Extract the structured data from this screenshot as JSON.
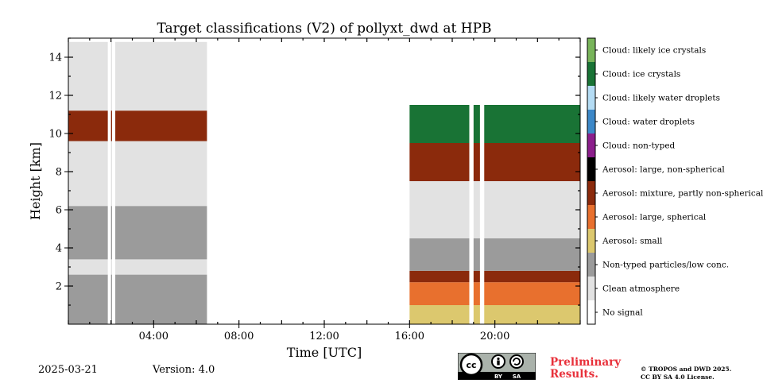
{
  "chart_data": {
    "type": "heatmap",
    "title": "Target classifications (V2) of pollyxt_dwd at HPB",
    "xlabel": "Time [UTC]",
    "ylabel": "Height [km]",
    "xlim": [
      0,
      24
    ],
    "ylim": [
      0,
      15
    ],
    "x_ticks": [
      {
        "value": 4,
        "label": "04:00"
      },
      {
        "value": 8,
        "label": "08:00"
      },
      {
        "value": 12,
        "label": "12:00"
      },
      {
        "value": 16,
        "label": "16:00"
      },
      {
        "value": 20,
        "label": "20:00"
      }
    ],
    "y_ticks": [
      {
        "value": 2,
        "label": "2"
      },
      {
        "value": 4,
        "label": "4"
      },
      {
        "value": 6,
        "label": "6"
      },
      {
        "value": 8,
        "label": "8"
      },
      {
        "value": 10,
        "label": "10"
      },
      {
        "value": 12,
        "label": "12"
      },
      {
        "value": 14,
        "label": "14"
      }
    ],
    "classes": [
      {
        "label": "No signal",
        "color": "#ffffff"
      },
      {
        "label": "Clean atmosphere",
        "color": "#e2e2e2"
      },
      {
        "label": "Non-typed particles/low conc.",
        "color": "#9b9b9b"
      },
      {
        "label": "Aerosol: small",
        "color": "#dcc86e"
      },
      {
        "label": "Aerosol: large, spherical",
        "color": "#e8702e"
      },
      {
        "label": "Aerosol: mixture, partly non-spherical",
        "color": "#8b2a0c"
      },
      {
        "label": "Aerosol: large, non-spherical",
        "color": "#000000"
      },
      {
        "label": "Cloud: non-typed",
        "color": "#8b1e8b"
      },
      {
        "label": "Cloud: water droplets",
        "color": "#3c88c8"
      },
      {
        "label": "Cloud: likely water droplets",
        "color": "#b4dcf4"
      },
      {
        "label": "Cloud: ice crystals",
        "color": "#197335"
      },
      {
        "label": "Cloud: likely ice crystals",
        "color": "#78b45a"
      }
    ],
    "segments": [
      {
        "t0": 0.0,
        "t1": 6.5,
        "layers": [
          {
            "h0": 0.0,
            "h1": 2.6,
            "class": "Non-typed particles/low conc."
          },
          {
            "h0": 2.6,
            "h1": 3.4,
            "class": "Clean atmosphere"
          },
          {
            "h0": 3.4,
            "h1": 6.2,
            "class": "Non-typed particles/low conc."
          },
          {
            "h0": 6.2,
            "h1": 9.6,
            "class": "Clean atmosphere"
          },
          {
            "h0": 9.6,
            "h1": 11.2,
            "class": "Aerosol: mixture, partly non-spherical"
          },
          {
            "h0": 11.2,
            "h1": 14.8,
            "class": "Clean atmosphere"
          }
        ]
      },
      {
        "t0": 16.0,
        "t1": 24.0,
        "layers": [
          {
            "h0": 0.0,
            "h1": 1.0,
            "class": "Aerosol: small"
          },
          {
            "h0": 1.0,
            "h1": 2.2,
            "class": "Aerosol: large, spherical"
          },
          {
            "h0": 2.2,
            "h1": 2.8,
            "class": "Aerosol: mixture, partly non-spherical"
          },
          {
            "h0": 2.8,
            "h1": 4.5,
            "class": "Non-typed particles/low conc."
          },
          {
            "h0": 4.5,
            "h1": 7.5,
            "class": "Clean atmosphere"
          },
          {
            "h0": 7.5,
            "h1": 9.5,
            "class": "Aerosol: mixture, partly non-spherical"
          },
          {
            "h0": 9.5,
            "h1": 11.5,
            "class": "Cloud: ice crystals"
          }
        ]
      }
    ],
    "gaps": [
      {
        "t0": 1.85,
        "t1": 2.0
      },
      {
        "t0": 2.05,
        "t1": 2.2
      },
      {
        "t0": 18.8,
        "t1": 19.0
      },
      {
        "t0": 19.3,
        "t1": 19.5
      }
    ]
  },
  "footer": {
    "date": "2025-03-21",
    "version": "Version: 4.0",
    "preliminary_line1": "Preliminary",
    "preliminary_line2": "Results.",
    "license_line1": "© TROPOS and DWD 2025.",
    "license_line2": "CC BY SA 4.0 License.",
    "cc_badge": {
      "cc": "cc",
      "by": "BY",
      "sa": "SA"
    }
  }
}
